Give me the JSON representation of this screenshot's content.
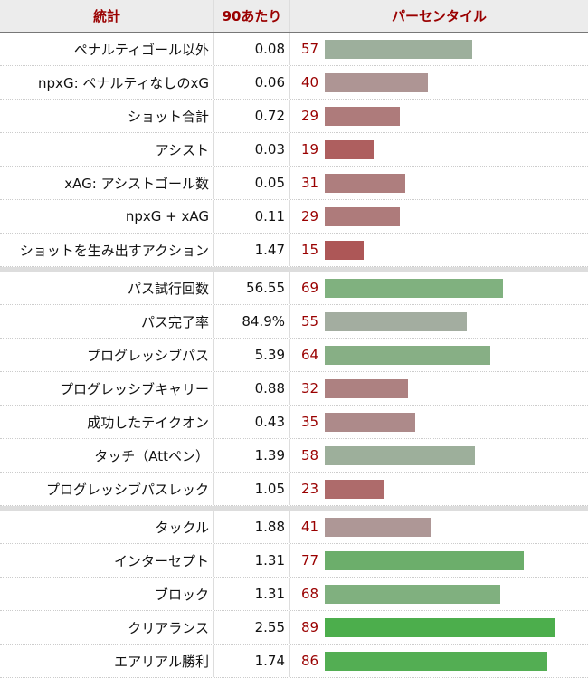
{
  "header": {
    "stat": "統計",
    "per90": "90あたり",
    "percentile": "パーセンタイル"
  },
  "groups": [
    [
      {
        "stat": "ペナルティゴール以外",
        "per90": "0.08",
        "percentile": 57,
        "color": "#9daf9c"
      },
      {
        "stat": "npxG: ペナルティなしのxG",
        "per90": "0.06",
        "percentile": 40,
        "color": "#ae9594"
      },
      {
        "stat": "ショット合計",
        "per90": "0.72",
        "percentile": 29,
        "color": "#ae7b7b"
      },
      {
        "stat": "アシスト",
        "per90": "0.03",
        "percentile": 19,
        "color": "#ae5f5f"
      },
      {
        "stat": "xAG: アシストゴール数",
        "per90": "0.05",
        "percentile": 31,
        "color": "#ae7e7e"
      },
      {
        "stat": "npxG + xAG",
        "per90": "0.11",
        "percentile": 29,
        "color": "#ae7b7b"
      },
      {
        "stat": "ショットを生み出すアクション",
        "per90": "1.47",
        "percentile": 15,
        "color": "#ad5757"
      }
    ],
    [
      {
        "stat": "パス試行回数",
        "per90": "56.55",
        "percentile": 69,
        "color": "#80b17f"
      },
      {
        "stat": "パス完了率",
        "per90": "84.9%",
        "percentile": 55,
        "color": "#a3ada0"
      },
      {
        "stat": "プログレッシブパス",
        "per90": "5.39",
        "percentile": 64,
        "color": "#87af85"
      },
      {
        "stat": "プログレッシブキャリー",
        "per90": "0.88",
        "percentile": 32,
        "color": "#ad8181"
      },
      {
        "stat": "成功したテイクオン",
        "per90": "0.43",
        "percentile": 35,
        "color": "#ad8a8a"
      },
      {
        "stat": "タッチ（Attペン）",
        "per90": "1.39",
        "percentile": 58,
        "color": "#9daf9b"
      },
      {
        "stat": "プログレッシブパスレック",
        "per90": "1.05",
        "percentile": 23,
        "color": "#ae6b6b"
      }
    ],
    [
      {
        "stat": "タックル",
        "per90": "1.88",
        "percentile": 41,
        "color": "#ae9796"
      },
      {
        "stat": "インターセプト",
        "per90": "1.31",
        "percentile": 77,
        "color": "#6cae6b"
      },
      {
        "stat": "ブロック",
        "per90": "1.31",
        "percentile": 68,
        "color": "#80b07f"
      },
      {
        "stat": "クリアランス",
        "per90": "2.55",
        "percentile": 89,
        "color": "#4cae4c"
      },
      {
        "stat": "エアリアル勝利",
        "per90": "1.74",
        "percentile": 86,
        "color": "#53ae53"
      }
    ]
  ]
}
